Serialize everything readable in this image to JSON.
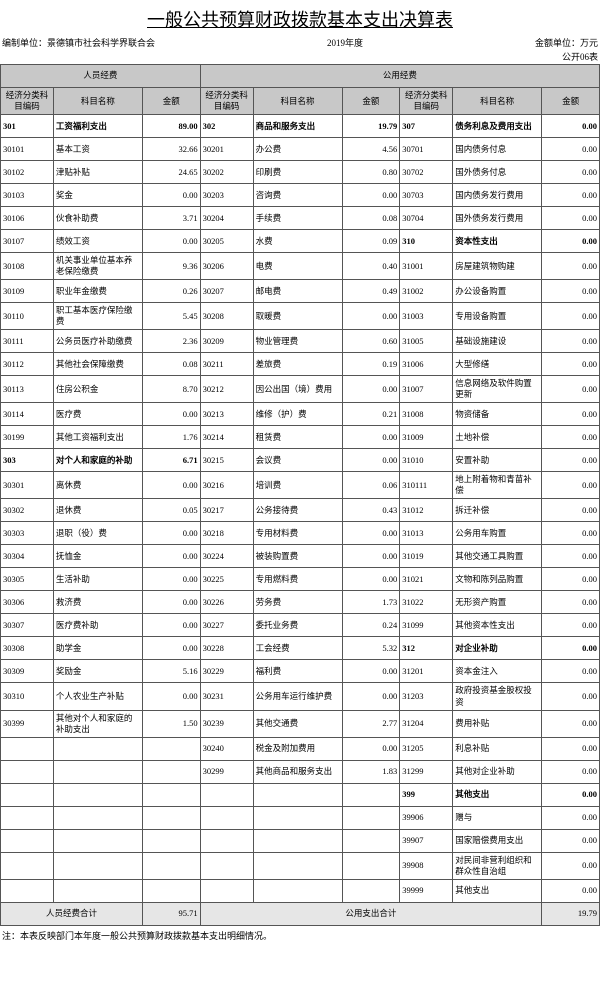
{
  "title": "一般公共预算财政拨款基本支出决算表",
  "unit_label": "编制单位：",
  "unit_name": "景德镇市社会科学界联合会",
  "year": "2019年度",
  "money_unit": "金额单位：万元",
  "form_no": "公开06表",
  "group_headers": [
    "人员经费",
    "公用经费"
  ],
  "col_headers": [
    "经济分类科目编码",
    "科目名称",
    "金额"
  ],
  "footer_labels": [
    "人员经费合计",
    "公用支出合计"
  ],
  "footer_values": [
    "95.71",
    "19.79"
  ],
  "note": "注：本表反映部门本年度一般公共预算财政拨款基本支出明细情况。",
  "rows": [
    {
      "c1": "301",
      "n1": "工资福利支出",
      "a1": "89.00",
      "b1": true,
      "c2": "302",
      "n2": "商品和服务支出",
      "a2": "19.79",
      "b2": true,
      "c3": "307",
      "n3": "债务利息及费用支出",
      "a3": "0.00",
      "b3": true
    },
    {
      "c1": "30101",
      "n1": "基本工资",
      "a1": "32.66",
      "c2": "30201",
      "n2": "办公费",
      "a2": "4.56",
      "c3": "30701",
      "n3": "国内债务付息",
      "a3": "0.00"
    },
    {
      "c1": "30102",
      "n1": "津贴补贴",
      "a1": "24.65",
      "c2": "30202",
      "n2": "印刷费",
      "a2": "0.80",
      "c3": "30702",
      "n3": "国外债务付息",
      "a3": "0.00"
    },
    {
      "c1": "30103",
      "n1": "奖金",
      "a1": "0.00",
      "c2": "30203",
      "n2": "咨询费",
      "a2": "0.00",
      "c3": "30703",
      "n3": "国内债务发行费用",
      "a3": "0.00"
    },
    {
      "c1": "30106",
      "n1": "伙食补助费",
      "a1": "3.71",
      "c2": "30204",
      "n2": "手续费",
      "a2": "0.08",
      "c3": "30704",
      "n3": "国外债务发行费用",
      "a3": "0.00"
    },
    {
      "c1": "30107",
      "n1": "绩效工资",
      "a1": "0.00",
      "c2": "30205",
      "n2": "水费",
      "a2": "0.09",
      "c3": "310",
      "n3": "资本性支出",
      "a3": "0.00",
      "b3": true
    },
    {
      "c1": "30108",
      "n1": "机关事业单位基本养老保险缴费",
      "a1": "9.36",
      "c2": "30206",
      "n2": "电费",
      "a2": "0.40",
      "c3": "31001",
      "n3": "房屋建筑物购建",
      "a3": "0.00"
    },
    {
      "c1": "30109",
      "n1": "职业年金缴费",
      "a1": "0.26",
      "c2": "30207",
      "n2": "邮电费",
      "a2": "0.49",
      "c3": "31002",
      "n3": "办公设备购置",
      "a3": "0.00"
    },
    {
      "c1": "30110",
      "n1": "职工基本医疗保险缴费",
      "a1": "5.45",
      "c2": "30208",
      "n2": "取暖费",
      "a2": "0.00",
      "c3": "31003",
      "n3": "专用设备购置",
      "a3": "0.00"
    },
    {
      "c1": "30111",
      "n1": "公务员医疗补助缴费",
      "a1": "2.36",
      "c2": "30209",
      "n2": "物业管理费",
      "a2": "0.60",
      "c3": "31005",
      "n3": "基础设施建设",
      "a3": "0.00"
    },
    {
      "c1": "30112",
      "n1": "其他社会保障缴费",
      "a1": "0.08",
      "c2": "30211",
      "n2": "差旅费",
      "a2": "0.19",
      "c3": "31006",
      "n3": "大型修缮",
      "a3": "0.00"
    },
    {
      "c1": "30113",
      "n1": "住房公积金",
      "a1": "8.70",
      "c2": "30212",
      "n2": "因公出国（境）费用",
      "a2": "0.00",
      "c3": "31007",
      "n3": "信息网络及软件购置更新",
      "a3": "0.00"
    },
    {
      "c1": "30114",
      "n1": "医疗费",
      "a1": "0.00",
      "c2": "30213",
      "n2": "维修（护）费",
      "a2": "0.21",
      "c3": "31008",
      "n3": "物资储备",
      "a3": "0.00"
    },
    {
      "c1": "30199",
      "n1": "其他工资福利支出",
      "a1": "1.76",
      "c2": "30214",
      "n2": "租赁费",
      "a2": "0.00",
      "c3": "31009",
      "n3": "土地补偿",
      "a3": "0.00"
    },
    {
      "c1": "303",
      "n1": "对个人和家庭的补助",
      "a1": "6.71",
      "b1": true,
      "c2": "30215",
      "n2": "会议费",
      "a2": "0.00",
      "c3": "31010",
      "n3": "安置补助",
      "a3": "0.00"
    },
    {
      "c1": "30301",
      "n1": "离休费",
      "a1": "0.00",
      "c2": "30216",
      "n2": "培训费",
      "a2": "0.06",
      "c3": "310111",
      "n3": "地上附着物和青苗补偿",
      "a3": "0.00"
    },
    {
      "c1": "30302",
      "n1": "退休费",
      "a1": "0.05",
      "c2": "30217",
      "n2": "公务接待费",
      "a2": "0.43",
      "c3": "31012",
      "n3": "拆迁补偿",
      "a3": "0.00"
    },
    {
      "c1": "30303",
      "n1": "退职（役）费",
      "a1": "0.00",
      "c2": "30218",
      "n2": "专用材料费",
      "a2": "0.00",
      "c3": "31013",
      "n3": "公务用车购置",
      "a3": "0.00"
    },
    {
      "c1": "30304",
      "n1": "抚恤金",
      "a1": "0.00",
      "c2": "30224",
      "n2": "被装购置费",
      "a2": "0.00",
      "c3": "31019",
      "n3": "其他交通工具购置",
      "a3": "0.00"
    },
    {
      "c1": "30305",
      "n1": "生活补助",
      "a1": "0.00",
      "c2": "30225",
      "n2": "专用燃料费",
      "a2": "0.00",
      "c3": "31021",
      "n3": "文物和陈列品购置",
      "a3": "0.00"
    },
    {
      "c1": "30306",
      "n1": "救济费",
      "a1": "0.00",
      "c2": "30226",
      "n2": "劳务费",
      "a2": "1.73",
      "c3": "31022",
      "n3": "无形资产购置",
      "a3": "0.00"
    },
    {
      "c1": "30307",
      "n1": "医疗费补助",
      "a1": "0.00",
      "c2": "30227",
      "n2": "委托业务费",
      "a2": "0.24",
      "c3": "31099",
      "n3": "其他资本性支出",
      "a3": "0.00"
    },
    {
      "c1": "30308",
      "n1": "助学金",
      "a1": "0.00",
      "c2": "30228",
      "n2": "工会经费",
      "a2": "5.32",
      "c3": "312",
      "n3": "对企业补助",
      "a3": "0.00",
      "b3": true
    },
    {
      "c1": "30309",
      "n1": "奖励金",
      "a1": "5.16",
      "c2": "30229",
      "n2": "福利费",
      "a2": "0.00",
      "c3": "31201",
      "n3": "资本金注入",
      "a3": "0.00"
    },
    {
      "c1": "30310",
      "n1": "个人农业生产补贴",
      "a1": "0.00",
      "c2": "30231",
      "n2": "公务用车运行维护费",
      "a2": "0.00",
      "c3": "31203",
      "n3": "政府投资基金股权投资",
      "a3": "0.00"
    },
    {
      "c1": "30399",
      "n1": "其他对个人和家庭的补助支出",
      "a1": "1.50",
      "c2": "30239",
      "n2": "其他交通费",
      "a2": "2.77",
      "c3": "31204",
      "n3": "费用补贴",
      "a3": "0.00"
    },
    {
      "c1": "",
      "n1": "",
      "a1": "",
      "c2": "30240",
      "n2": "税金及附加费用",
      "a2": "0.00",
      "c3": "31205",
      "n3": "利息补贴",
      "a3": "0.00"
    },
    {
      "c1": "",
      "n1": "",
      "a1": "",
      "c2": "30299",
      "n2": "其他商品和服务支出",
      "a2": "1.83",
      "c3": "31299",
      "n3": "其他对企业补助",
      "a3": "0.00"
    },
    {
      "c1": "",
      "n1": "",
      "a1": "",
      "c2": "",
      "n2": "",
      "a2": "",
      "c3": "399",
      "n3": "其他支出",
      "a3": "0.00",
      "b3": true
    },
    {
      "c1": "",
      "n1": "",
      "a1": "",
      "c2": "",
      "n2": "",
      "a2": "",
      "c3": "39906",
      "n3": "赠与",
      "a3": "0.00"
    },
    {
      "c1": "",
      "n1": "",
      "a1": "",
      "c2": "",
      "n2": "",
      "a2": "",
      "c3": "39907",
      "n3": "国家赔偿费用支出",
      "a3": "0.00"
    },
    {
      "c1": "",
      "n1": "",
      "a1": "",
      "c2": "",
      "n2": "",
      "a2": "",
      "c3": "39908",
      "n3": "对民间非营利组织和群众性自治组",
      "a3": "0.00"
    },
    {
      "c1": "",
      "n1": "",
      "a1": "",
      "c2": "",
      "n2": "",
      "a2": "",
      "c3": "39999",
      "n3": "其他支出",
      "a3": "0.00"
    }
  ]
}
